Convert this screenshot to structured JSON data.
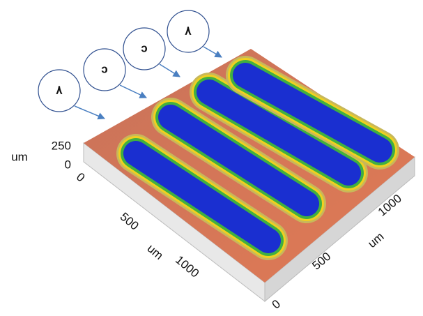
{
  "annotations": [
    "٨",
    "ɔ",
    "ɔ",
    "٨"
  ],
  "axes": {
    "z": {
      "label": "um",
      "ticks": [
        250,
        0
      ]
    },
    "x": {
      "label": "um",
      "ticks": [
        0,
        500,
        1000
      ]
    },
    "y": {
      "label": "um",
      "ticks": [
        0,
        500,
        1000
      ]
    }
  }
}
